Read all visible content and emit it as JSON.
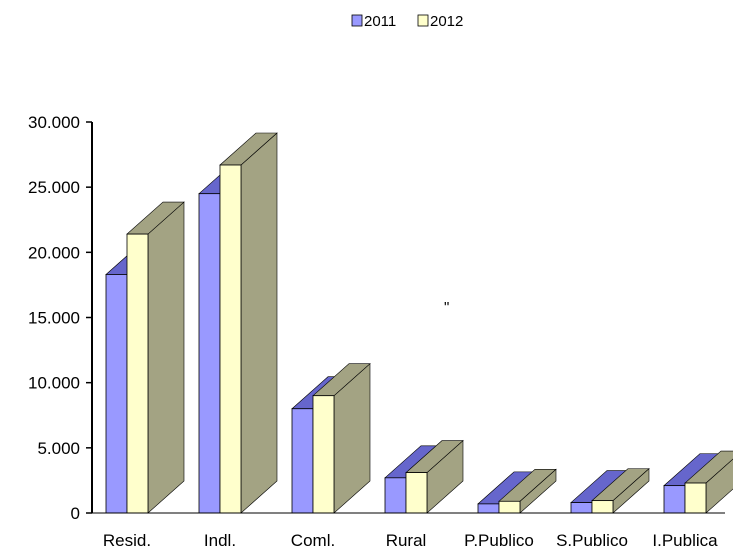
{
  "chart_data": {
    "type": "bar",
    "bar_style": "3d",
    "categories": [
      "Resid.",
      "Indl.",
      "Coml.",
      "Rural",
      "P.Publico",
      "S.Publico",
      "I.Publica"
    ],
    "series": [
      {
        "name": "2011",
        "values": [
          18300,
          24500,
          8000,
          2700,
          700,
          800,
          2100
        ],
        "color": "#9999ff",
        "shade": "#6666cc"
      },
      {
        "name": "2012",
        "values": [
          21400,
          26700,
          9000,
          3100,
          900,
          950,
          2300
        ],
        "color": "#ffffcc",
        "shade": "#a3a383"
      }
    ],
    "ylim": [
      0,
      30000
    ],
    "yticks": [
      0,
      5000,
      10000,
      15000,
      20000,
      25000,
      30000
    ],
    "ytick_labels": [
      "0",
      "5.000",
      "10.000",
      "15.000",
      "20.000",
      "25.000",
      "30.000"
    ],
    "legend_position": "top-center",
    "annotation": "\"",
    "grid": false
  }
}
